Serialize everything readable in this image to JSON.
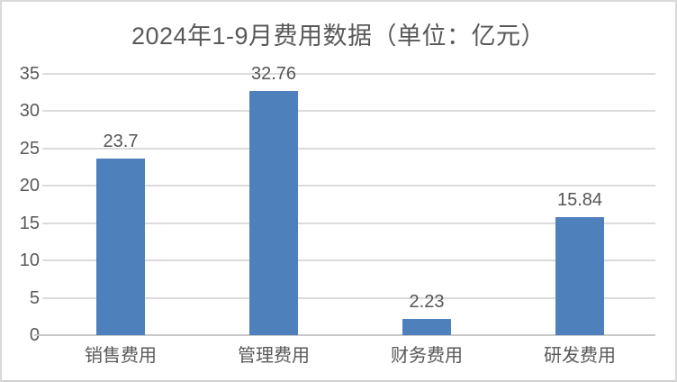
{
  "chart_data": {
    "type": "bar",
    "title": "2024年1-9月费用数据（单位：亿元）",
    "categories": [
      "销售费用",
      "管理费用",
      "财务费用",
      "研发费用"
    ],
    "values": [
      23.7,
      32.76,
      2.23,
      15.84
    ],
    "data_labels": [
      "23.7",
      "32.76",
      "2.23",
      "15.84"
    ],
    "series_name": "费用",
    "unit": "亿元",
    "xlabel": "",
    "ylabel": "",
    "ylim": [
      0,
      35
    ],
    "yticks": [
      0,
      5,
      10,
      15,
      20,
      25,
      30,
      35
    ],
    "grid": true,
    "legend": "none",
    "colors": {
      "bar": "#4E81BC",
      "title_text": "#595959",
      "axis_text": "#595959",
      "gridline": "#DBDBDB",
      "axis_line": "#C9C9C9",
      "frame_border": "#D9D9D9",
      "background": "#FFFFFF"
    }
  }
}
